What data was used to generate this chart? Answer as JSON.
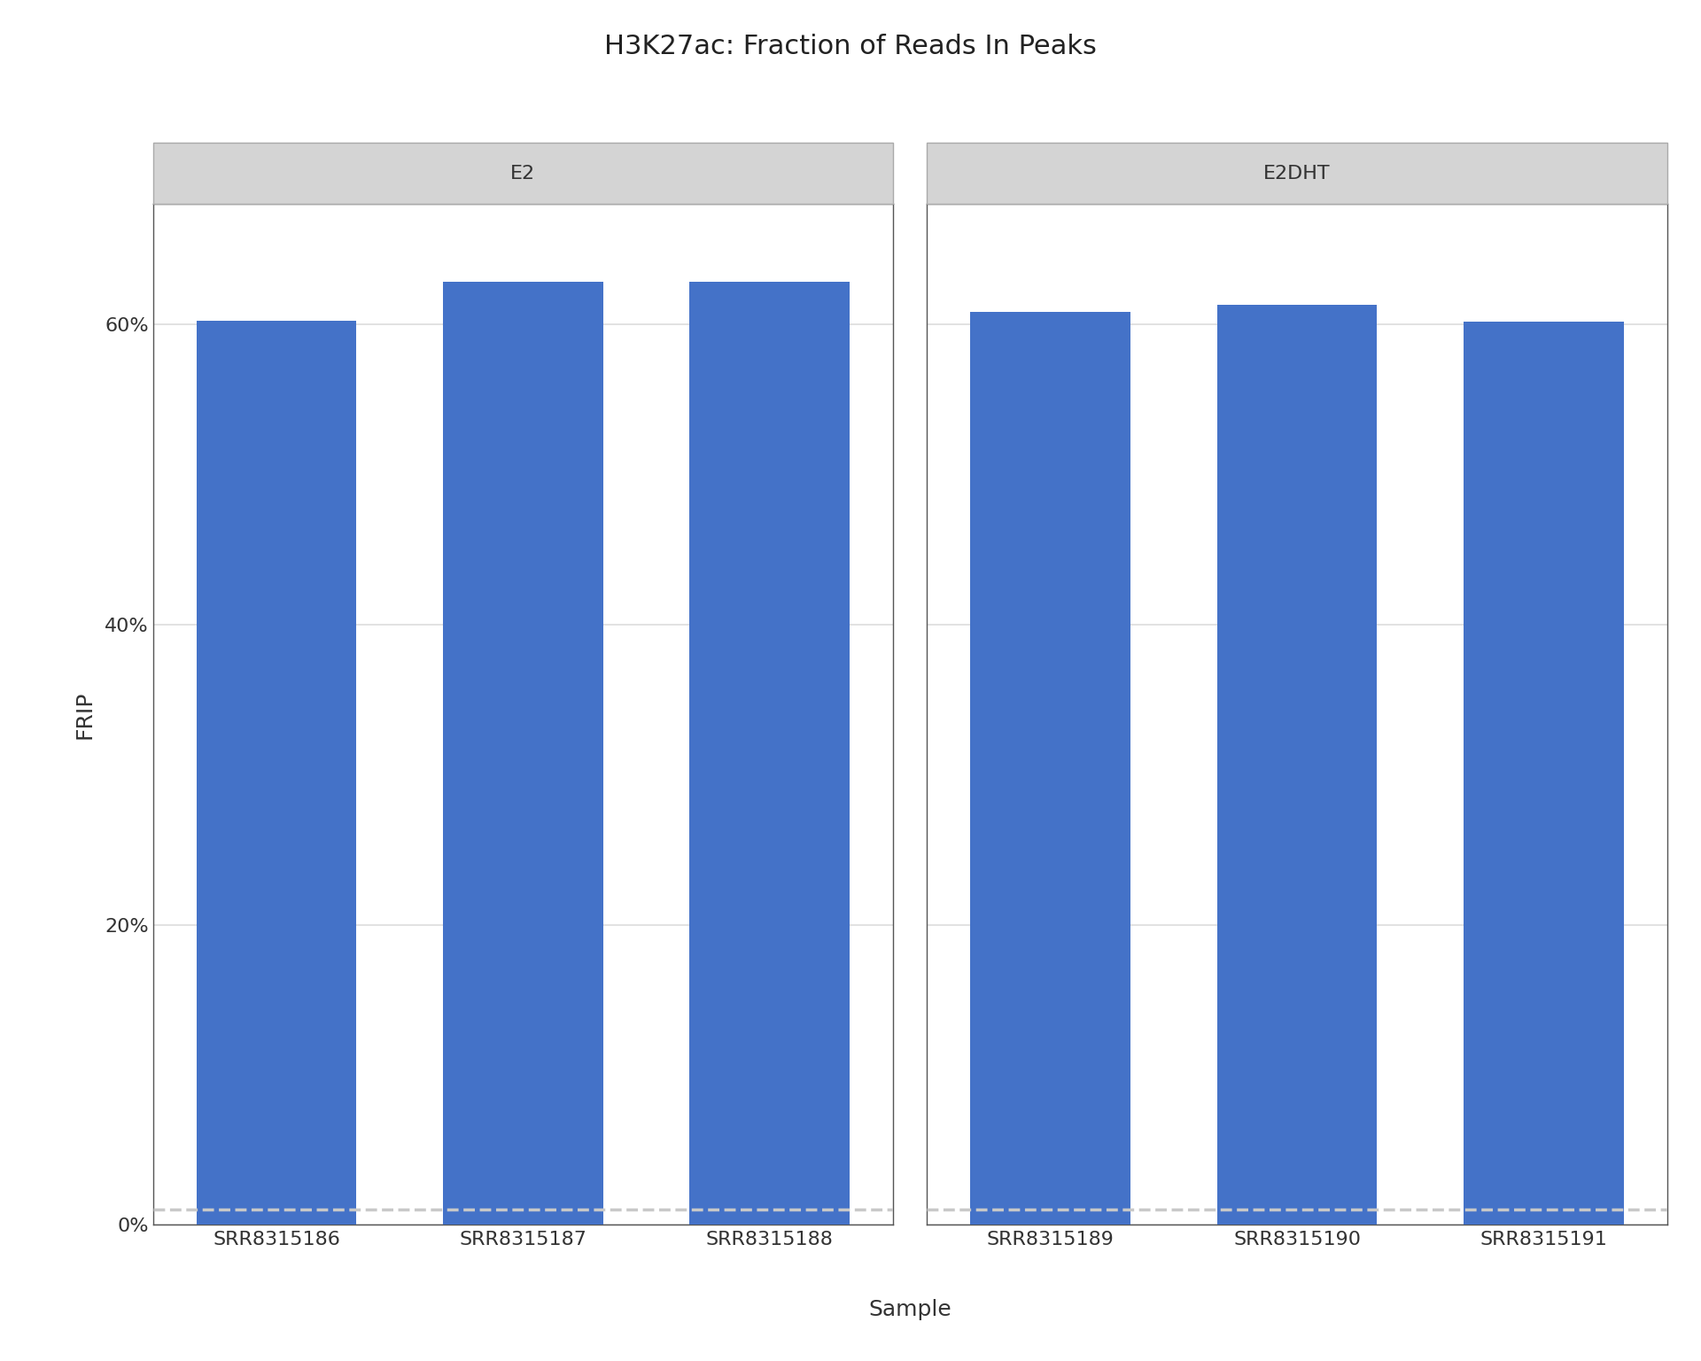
{
  "title": "H3K27ac: Fraction of Reads In Peaks",
  "facets": [
    "E2",
    "E2DHT"
  ],
  "samples_e2": [
    "SRR8315186",
    "SRR8315187",
    "SRR8315188"
  ],
  "samples_e2dht": [
    "SRR8315189",
    "SRR8315190",
    "SRR8315191"
  ],
  "values_e2": [
    0.6025,
    0.628,
    0.628
  ],
  "values_e2dht": [
    0.608,
    0.613,
    0.602
  ],
  "bar_color": "#4472c8",
  "threshold": 0.01,
  "threshold_color": "#c8c8c8",
  "ylabel": "FRIP",
  "xlabel": "Sample",
  "ylim": [
    0,
    0.68
  ],
  "yticks": [
    0.0,
    0.2,
    0.4,
    0.6
  ],
  "yticklabels": [
    "0%",
    "20%",
    "40%",
    "60%"
  ],
  "title_fontsize": 22,
  "label_fontsize": 18,
  "tick_fontsize": 16,
  "facet_fontsize": 16,
  "background_color": "#ffffff",
  "plot_bg": "#ffffff",
  "facet_bg": "#d4d4d4",
  "facet_border": "#aaaaaa",
  "grid_color": "#dddddd",
  "bar_width": 0.65
}
